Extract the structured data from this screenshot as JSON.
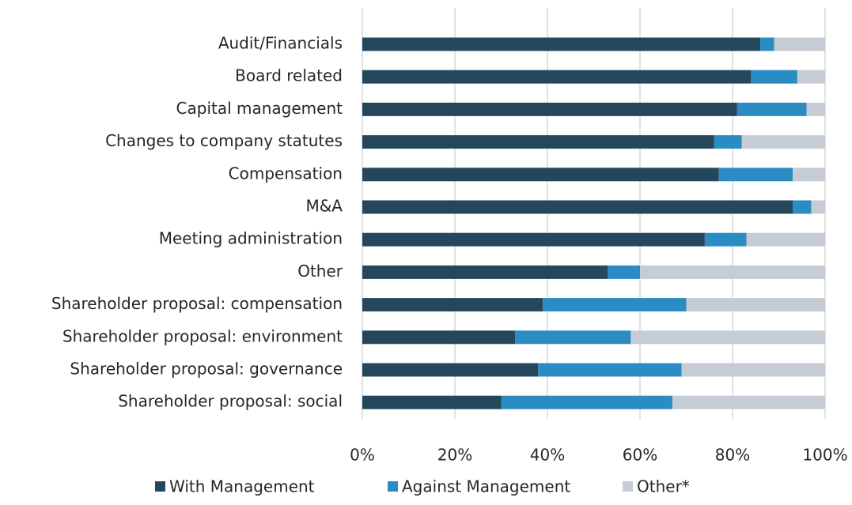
{
  "chart_data": {
    "type": "stacked-barh",
    "categories": [
      "Audit/Financials",
      "Board related",
      "Capital management",
      "Changes to company statutes",
      "Compensation",
      "M&A",
      "Meeting administration",
      "Other",
      "Shareholder proposal: compensation",
      "Shareholder proposal: environment",
      "Shareholder proposal: governance",
      "Shareholder proposal: social"
    ],
    "series": [
      {
        "name": "With Management",
        "color": "#25475c",
        "values": [
          86,
          84,
          81,
          76,
          77,
          93,
          74,
          53,
          39,
          33,
          38,
          30
        ]
      },
      {
        "name": "Against Management",
        "color": "#2b8cc4",
        "values": [
          3,
          10,
          15,
          6,
          16,
          4,
          9,
          7,
          31,
          25,
          31,
          37
        ]
      },
      {
        "name": "Other*",
        "color": "#c5ccd3",
        "values": [
          11,
          6,
          4,
          18,
          7,
          3,
          17,
          40,
          30,
          42,
          31,
          33
        ]
      }
    ],
    "xlim": [
      0,
      100
    ],
    "xticks": [
      {
        "value": 0,
        "label": "0%"
      },
      {
        "value": 20,
        "label": "20%"
      },
      {
        "value": 40,
        "label": "40%"
      },
      {
        "value": 60,
        "label": "60%"
      },
      {
        "value": 80,
        "label": "80%"
      },
      {
        "value": 100,
        "label": "100%"
      }
    ],
    "grid": true,
    "legend": "bottom"
  }
}
